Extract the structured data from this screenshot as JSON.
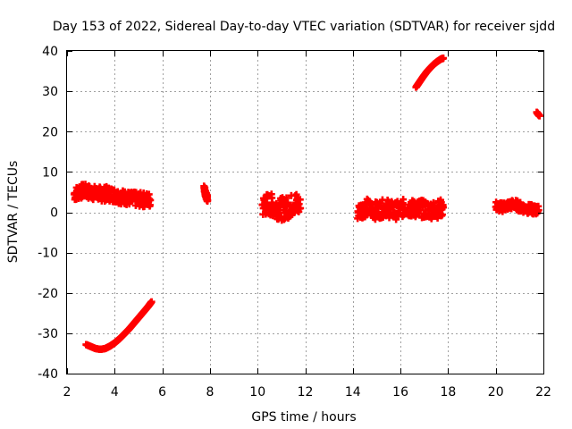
{
  "chart_data": {
    "type": "scatter",
    "title": "Day 153 of 2022, Sidereal Day-to-day VTEC variation (SDTVAR) for receiver sjdd",
    "xlabel": "GPS time / hours",
    "ylabel": "SDTVAR / TECUs",
    "xlim": [
      2,
      22
    ],
    "ylim": [
      -40,
      40
    ],
    "xticks": [
      2,
      4,
      6,
      8,
      10,
      12,
      14,
      16,
      18,
      20,
      22
    ],
    "yticks": [
      -40,
      -30,
      -20,
      -10,
      0,
      10,
      20,
      30,
      40
    ],
    "grid": true,
    "marker": "plus",
    "color": "#ff0000",
    "series": [
      {
        "name": "sjdd",
        "clusters": [
          {
            "x": [
              2.3,
              2.5,
              2.7,
              2.9,
              3.1,
              3.3,
              3.5,
              3.7,
              3.9,
              4.1,
              4.3,
              4.5,
              4.7,
              4.9,
              5.1,
              5.3,
              5.5
            ],
            "y": [
              4.5,
              5.0,
              5.3,
              5.0,
              4.8,
              4.6,
              4.5,
              4.6,
              4.4,
              4.1,
              3.8,
              3.6,
              3.3,
              3.2,
              3.1,
              3.1,
              3.0
            ],
            "spread": 1.8
          },
          {
            "x": [
              2.8,
              3.0,
              3.2,
              3.4,
              3.6,
              3.8,
              4.0,
              4.2,
              4.4,
              4.6,
              4.8,
              5.0,
              5.2,
              5.4,
              5.55
            ],
            "y": [
              -32.8,
              -33.3,
              -33.8,
              -34.0,
              -33.8,
              -33.2,
              -32.4,
              -31.4,
              -30.2,
              -29.0,
              -27.6,
              -26.2,
              -24.8,
              -23.4,
              -22.2
            ],
            "spread": 0
          },
          {
            "x": [
              7.75,
              7.8,
              7.85,
              7.9,
              7.8
            ],
            "y": [
              6.5,
              5.0,
              4.0,
              3.2,
              4.5
            ],
            "spread": 0.8
          },
          {
            "x": [
              10.2,
              10.4,
              10.6,
              10.8,
              11.0,
              11.2,
              11.4,
              11.6,
              11.8
            ],
            "y": [
              1.5,
              2.0,
              1.8,
              1.2,
              0.8,
              1.0,
              1.6,
              2.4,
              1.0
            ],
            "spread": 2.8
          },
          {
            "x": [
              14.2,
              14.4,
              14.6,
              14.8,
              15.0,
              15.2,
              15.4,
              15.6,
              15.8,
              16.0,
              16.2,
              16.4,
              16.6,
              16.8,
              17.0,
              17.2,
              17.4,
              17.6,
              17.8
            ],
            "y": [
              0.2,
              0.8,
              1.2,
              0.6,
              0.4,
              0.8,
              1.2,
              0.6,
              0.4,
              0.8,
              1.2,
              1.0,
              0.8,
              1.0,
              0.7,
              0.6,
              0.6,
              0.8,
              1.2
            ],
            "spread": 2.2
          },
          {
            "x": [
              16.65,
              16.8,
              16.95,
              17.1,
              17.25,
              17.4,
              17.55,
              17.7,
              17.8
            ],
            "y": [
              31.0,
              32.3,
              33.6,
              34.8,
              35.8,
              36.7,
              37.4,
              38.0,
              38.2
            ],
            "spread": 0
          },
          {
            "x": [
              20.0,
              20.2,
              20.4,
              20.6,
              20.8,
              21.0,
              21.2,
              21.4,
              21.6,
              21.8
            ],
            "y": [
              1.5,
              1.2,
              1.5,
              1.8,
              2.0,
              1.4,
              1.0,
              0.8,
              0.6,
              0.5
            ],
            "spread": 1.2
          },
          {
            "x": [
              21.72,
              21.78,
              21.84
            ],
            "y": [
              24.8,
              24.3,
              23.9
            ],
            "spread": 0
          }
        ]
      }
    ]
  }
}
